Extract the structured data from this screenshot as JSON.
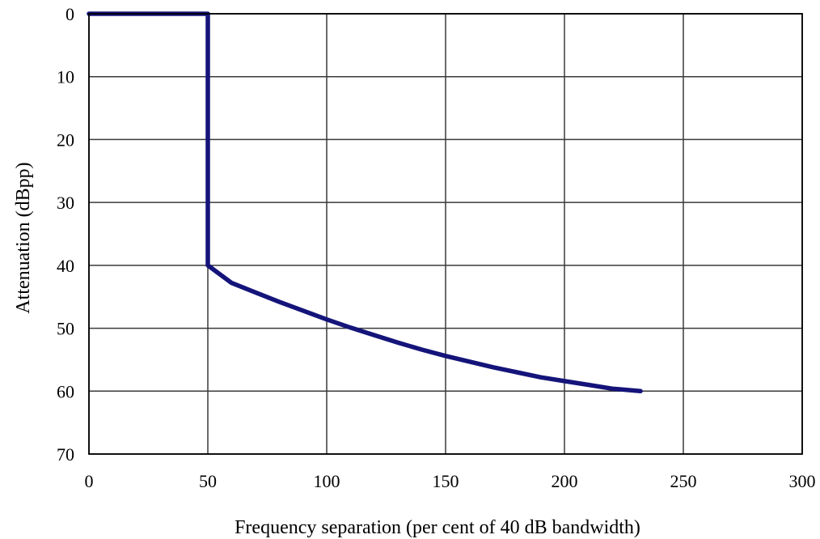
{
  "chart_data": {
    "type": "line",
    "title": "",
    "xlabel": "Frequency separation (per cent of 40 dB bandwidth)",
    "ylabel": "Attenuation (dBpp)",
    "xlim": [
      0,
      300
    ],
    "ylim": [
      0,
      70
    ],
    "y_inverted": true,
    "grid": true,
    "legend": "none",
    "x_ticks": [
      "0",
      "50",
      "100",
      "150",
      "200",
      "250",
      "300"
    ],
    "y_ticks": [
      "0",
      "10",
      "20",
      "30",
      "40",
      "50",
      "60",
      "70"
    ],
    "series": [
      {
        "color": "#14147a",
        "points": [
          {
            "x": 0,
            "y": 0
          },
          {
            "x": 50,
            "y": 0
          },
          {
            "x": 50,
            "y": 40
          },
          {
            "x": 60,
            "y": 42.8
          },
          {
            "x": 70,
            "y": 44.3
          },
          {
            "x": 80,
            "y": 45.8
          },
          {
            "x": 90,
            "y": 47.2
          },
          {
            "x": 100,
            "y": 48.6
          },
          {
            "x": 110,
            "y": 49.9
          },
          {
            "x": 120,
            "y": 51.1
          },
          {
            "x": 130,
            "y": 52.3
          },
          {
            "x": 140,
            "y": 53.4
          },
          {
            "x": 150,
            "y": 54.4
          },
          {
            "x": 160,
            "y": 55.3
          },
          {
            "x": 170,
            "y": 56.2
          },
          {
            "x": 180,
            "y": 57.0
          },
          {
            "x": 190,
            "y": 57.8
          },
          {
            "x": 200,
            "y": 58.4
          },
          {
            "x": 210,
            "y": 59.0
          },
          {
            "x": 220,
            "y": 59.6
          },
          {
            "x": 232,
            "y": 60.0
          }
        ]
      }
    ]
  }
}
